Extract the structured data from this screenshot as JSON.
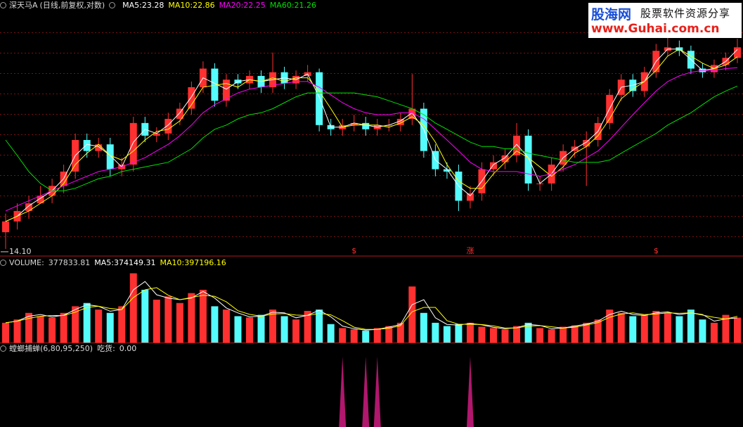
{
  "watermark": {
    "brand": "股海网",
    "slogan": "股票软件资源分享",
    "url": "www.Guhai.com.cn"
  },
  "chart_data": [
    {
      "type": "candlestick",
      "title": "深天马A",
      "subtitle": "(日线,前复权,对数)",
      "log_scale": true,
      "sep": ":",
      "ylim": [
        14,
        25.5
      ],
      "yticks": [
        {
          "value": 14.1,
          "label": "14.10"
        }
      ],
      "up_color": "#ff3030",
      "down_color": "#54fcfc",
      "open": [
        14.8,
        15.2,
        15.6,
        15.9,
        16.2,
        16.6,
        17.2,
        18.6,
        18.1,
        18.4,
        17.3,
        17.5,
        19.4,
        18.8,
        18.9,
        19.6,
        20.1,
        21.2,
        22.2,
        20.5,
        21.6,
        21.4,
        21.8,
        21.2,
        22.0,
        21.4,
        21.8,
        22.0,
        19.3,
        19.1,
        19.3,
        19.4,
        19.1,
        19.3,
        19.3,
        19.6,
        20.1,
        18.1,
        17.3,
        17.2,
        16.0,
        16.3,
        17.3,
        17.6,
        17.9,
        18.8,
        16.7,
        16.7,
        17.5,
        18.1,
        18.3,
        18.6,
        19.4,
        20.8,
        21.6,
        21.0,
        22.0,
        23.2,
        23.4,
        23.2,
        22.2,
        22.0,
        22.4,
        22.8
      ],
      "high": [
        15.5,
        15.9,
        16.2,
        16.6,
        16.9,
        17.5,
        18.9,
        18.9,
        18.7,
        18.7,
        17.8,
        19.7,
        19.7,
        19.2,
        19.9,
        20.4,
        21.5,
        22.6,
        22.5,
        21.9,
        21.9,
        22.1,
        22.1,
        23.1,
        22.3,
        22.1,
        22.4,
        22.2,
        19.6,
        19.6,
        19.8,
        19.7,
        19.6,
        19.6,
        19.9,
        21.9,
        20.4,
        18.4,
        17.6,
        17.5,
        16.6,
        17.6,
        17.9,
        18.2,
        19.4,
        19.1,
        17.0,
        17.8,
        18.4,
        18.6,
        19.0,
        19.7,
        21.1,
        21.9,
        21.9,
        22.3,
        23.6,
        24.4,
        23.8,
        23.5,
        22.5,
        22.7,
        23.1,
        23.9
      ],
      "low": [
        14.2,
        14.9,
        15.3,
        15.9,
        15.9,
        16.3,
        16.9,
        17.8,
        17.8,
        17.0,
        17.0,
        17.2,
        18.5,
        18.5,
        18.6,
        19.3,
        19.8,
        20.9,
        20.2,
        20.2,
        21.1,
        21.1,
        20.9,
        20.9,
        21.1,
        21.1,
        21.5,
        19.0,
        18.8,
        18.8,
        19.0,
        18.8,
        18.8,
        19.0,
        19.0,
        19.3,
        17.8,
        17.0,
        16.9,
        15.6,
        15.7,
        16.0,
        17.0,
        17.3,
        17.6,
        16.4,
        16.4,
        16.4,
        17.2,
        17.8,
        16.6,
        18.3,
        19.1,
        20.5,
        20.7,
        20.7,
        21.7,
        22.9,
        22.9,
        21.9,
        21.7,
        21.7,
        22.1,
        22.5
      ],
      "close": [
        15.2,
        15.6,
        15.9,
        16.2,
        16.6,
        17.2,
        18.6,
        18.1,
        18.4,
        17.3,
        17.5,
        19.4,
        18.8,
        18.9,
        19.6,
        20.1,
        21.2,
        22.2,
        20.5,
        21.6,
        21.4,
        21.8,
        21.2,
        22.0,
        21.4,
        21.8,
        22.0,
        19.3,
        19.1,
        19.3,
        19.4,
        19.1,
        19.3,
        19.3,
        19.6,
        20.1,
        18.1,
        17.3,
        17.2,
        16.0,
        16.3,
        17.3,
        17.6,
        17.9,
        18.8,
        16.7,
        16.7,
        17.5,
        18.1,
        18.3,
        18.6,
        19.4,
        20.8,
        21.6,
        21.0,
        22.0,
        23.2,
        23.4,
        23.2,
        22.2,
        22.0,
        22.4,
        22.8,
        23.4
      ],
      "lines": [
        {
          "name": "MA5",
          "color": "#ffffff",
          "values": [
            15.2,
            15.4,
            15.8,
            16.1,
            16.4,
            16.9,
            17.9,
            18.4,
            18.3,
            17.9,
            17.4,
            18.5,
            19.1,
            18.9,
            19.3,
            19.9,
            20.7,
            21.7,
            21.4,
            21.1,
            21.5,
            21.6,
            21.5,
            21.6,
            21.7,
            21.6,
            21.9,
            20.7,
            19.2,
            19.2,
            19.4,
            19.3,
            19.2,
            19.3,
            19.5,
            19.9,
            19.1,
            17.7,
            17.3,
            16.6,
            16.2,
            16.8,
            17.5,
            17.8,
            18.4,
            17.8,
            16.7,
            17.1,
            17.8,
            18.2,
            18.5,
            19.0,
            20.1,
            21.2,
            21.3,
            21.5,
            22.6,
            23.3,
            23.3,
            22.7,
            22.1,
            22.2,
            22.6,
            23.28
          ]
        },
        {
          "name": "MA10",
          "color": "#ffff00",
          "values": [
            15.2,
            15.4,
            15.6,
            15.9,
            16.2,
            16.7,
            17.5,
            18.0,
            18.4,
            17.9,
            17.7,
            18.1,
            18.6,
            19.0,
            19.1,
            19.5,
            20.3,
            21.2,
            21.3,
            21.4,
            21.2,
            21.6,
            21.5,
            21.7,
            21.5,
            21.7,
            21.7,
            21.0,
            20.1,
            19.2,
            19.3,
            19.3,
            19.3,
            19.2,
            19.4,
            19.7,
            19.3,
            18.5,
            17.5,
            16.8,
            16.5,
            16.5,
            17.1,
            17.6,
            18.1,
            17.8,
            17.4,
            17.0,
            17.4,
            18.0,
            18.3,
            18.8,
            19.6,
            20.6,
            21.1,
            21.5,
            22.1,
            22.9,
            23.3,
            22.9,
            22.5,
            22.2,
            22.4,
            22.86
          ]
        },
        {
          "name": "MA20",
          "color": "#ff00ff",
          "values": [
            15.6,
            15.8,
            16.0,
            16.2,
            16.4,
            16.6,
            16.8,
            17.0,
            17.2,
            17.3,
            17.4,
            17.6,
            17.8,
            18.1,
            18.4,
            18.8,
            19.3,
            19.9,
            20.3,
            20.6,
            20.9,
            21.1,
            21.2,
            21.3,
            21.4,
            21.5,
            21.5,
            21.2,
            20.8,
            20.4,
            20.1,
            19.9,
            19.8,
            19.8,
            19.9,
            19.9,
            19.6,
            19.1,
            18.6,
            18.1,
            17.6,
            17.3,
            17.2,
            17.2,
            17.2,
            17.1,
            17.0,
            17.1,
            17.3,
            17.5,
            17.8,
            18.1,
            18.6,
            19.2,
            19.8,
            20.4,
            21.0,
            21.5,
            21.8,
            22.0,
            22.1,
            22.1,
            22.2,
            22.25
          ]
        },
        {
          "name": "MA60",
          "color": "#00e000",
          "values": [
            18.6,
            17.9,
            17.2,
            16.7,
            16.4,
            16.4,
            16.5,
            16.7,
            16.9,
            17.0,
            17.2,
            17.3,
            17.4,
            17.5,
            17.6,
            17.9,
            18.2,
            18.7,
            19.1,
            19.3,
            19.6,
            19.8,
            19.9,
            20.1,
            20.4,
            20.7,
            20.9,
            20.9,
            20.9,
            20.9,
            20.9,
            20.8,
            20.7,
            20.5,
            20.3,
            20.1,
            19.8,
            19.4,
            19.1,
            18.8,
            18.5,
            18.3,
            18.3,
            18.2,
            18.2,
            18.0,
            17.9,
            17.8,
            17.7,
            17.6,
            17.6,
            17.6,
            17.7,
            18.0,
            18.3,
            18.6,
            18.9,
            19.3,
            19.6,
            19.9,
            20.3,
            20.7,
            21.0,
            21.26
          ]
        }
      ],
      "annotations": [
        {
          "text": "$",
          "index": 30
        },
        {
          "text": "涨",
          "index": 40
        },
        {
          "text": "$",
          "index": 56
        }
      ]
    },
    {
      "type": "volume",
      "title": "VOLUME",
      "sep": ":",
      "ylim": [
        0,
        1130000
      ],
      "values": [
        300000,
        350000,
        450000,
        400000,
        380000,
        450000,
        550000,
        600000,
        500000,
        450000,
        550000,
        1050000,
        800000,
        650000,
        700000,
        600000,
        750000,
        800000,
        550000,
        500000,
        400000,
        380000,
        420000,
        500000,
        400000,
        350000,
        480000,
        500000,
        280000,
        220000,
        200000,
        180000,
        220000,
        250000,
        300000,
        850000,
        450000,
        300000,
        250000,
        280000,
        300000,
        240000,
        220000,
        200000,
        250000,
        300000,
        220000,
        200000,
        240000,
        260000,
        300000,
        350000,
        500000,
        450000,
        400000,
        420000,
        480000,
        450000,
        400000,
        500000,
        350000,
        300000,
        420000,
        377833.81
      ],
      "lines": [
        {
          "name": "MA5",
          "color": "#ffffff",
          "values": [
            300000,
            325000,
            400000,
            425000,
            390000,
            415000,
            500000,
            575000,
            550000,
            475000,
            500000,
            800000,
            925000,
            725000,
            675000,
            650000,
            675000,
            775000,
            675000,
            525000,
            450000,
            390000,
            400000,
            460000,
            450000,
            375000,
            415000,
            490000,
            390000,
            250000,
            210000,
            190000,
            200000,
            235000,
            275000,
            575000,
            650000,
            375000,
            275000,
            265000,
            290000,
            270000,
            230000,
            210000,
            225000,
            275000,
            260000,
            210000,
            220000,
            250000,
            280000,
            325000,
            425000,
            475000,
            425000,
            410000,
            450000,
            465000,
            425000,
            450000,
            425000,
            325000,
            360000,
            374149.31
          ]
        },
        {
          "name": "MA10",
          "color": "#ffff00",
          "values": [
            300000,
            325000,
            367000,
            400000,
            410000,
            410000,
            460000,
            533000,
            550000,
            517000,
            500000,
            683000,
            800000,
            833000,
            717000,
            650000,
            683000,
            717000,
            700000,
            617000,
            483000,
            427000,
            400000,
            433000,
            440000,
            417000,
            410000,
            443000,
            420000,
            333000,
            233000,
            200000,
            200000,
            217000,
            257000,
            467000,
            533000,
            533000,
            333000,
            277000,
            277000,
            273000,
            253000,
            220000,
            223000,
            250000,
            257000,
            240000,
            220000,
            233000,
            267000,
            303000,
            383000,
            433000,
            450000,
            423000,
            433000,
            450000,
            443000,
            450000,
            417000,
            383000,
            357000,
            397196.16
          ]
        }
      ]
    },
    {
      "type": "spike",
      "title": "螳螂捕蝉(6,80,95,250)",
      "sep": ":",
      "ylim": [
        0,
        1
      ],
      "series": [
        {
          "name": "吃货",
          "color": "#b0176d",
          "current_label": "0.00",
          "values": [
            0,
            0,
            0,
            0,
            0,
            0,
            0,
            0,
            0,
            0,
            0,
            0,
            0,
            0,
            0,
            0,
            0,
            0,
            0,
            0,
            0,
            0,
            0,
            0,
            0,
            0,
            0,
            0,
            0,
            1,
            0,
            1,
            1,
            0,
            0,
            0,
            0,
            0,
            0,
            0,
            1,
            0,
            0,
            0,
            0,
            0,
            0,
            0,
            0,
            0,
            0,
            0,
            0,
            0,
            0,
            0,
            0,
            0,
            0,
            0,
            0,
            0,
            0,
            0
          ]
        }
      ]
    }
  ]
}
